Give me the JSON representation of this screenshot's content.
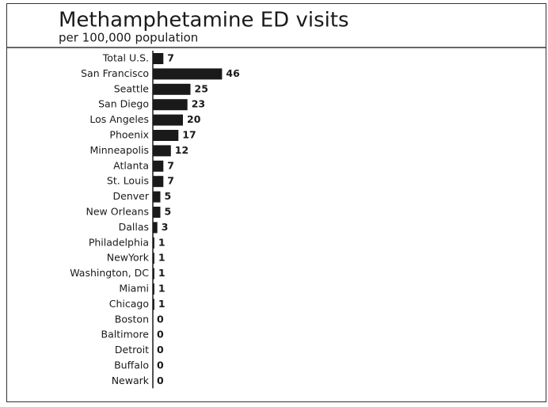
{
  "chart_data": {
    "type": "bar",
    "orientation": "horizontal",
    "title": "Methamphetamine ED visits",
    "subtitle": "per 100,000 population",
    "categories": [
      "Total U.S.",
      "San Francisco",
      "Seattle",
      "San Diego",
      "Los Angeles",
      "Phoenix",
      "Minneapolis",
      "Atlanta",
      "St. Louis",
      "Denver",
      "New Orleans",
      "Dallas",
      "Philadelphia",
      "NewYork",
      "Washington, DC",
      "Miami",
      "Chicago",
      "Boston",
      "Baltimore",
      "Detroit",
      "Buffalo",
      "Newark"
    ],
    "values": [
      7,
      46,
      25,
      23,
      20,
      17,
      12,
      7,
      7,
      5,
      5,
      3,
      1,
      1,
      1,
      1,
      1,
      0,
      0,
      0,
      0,
      0
    ],
    "color": "#1a1a1a",
    "xlim": [
      0,
      50
    ]
  }
}
